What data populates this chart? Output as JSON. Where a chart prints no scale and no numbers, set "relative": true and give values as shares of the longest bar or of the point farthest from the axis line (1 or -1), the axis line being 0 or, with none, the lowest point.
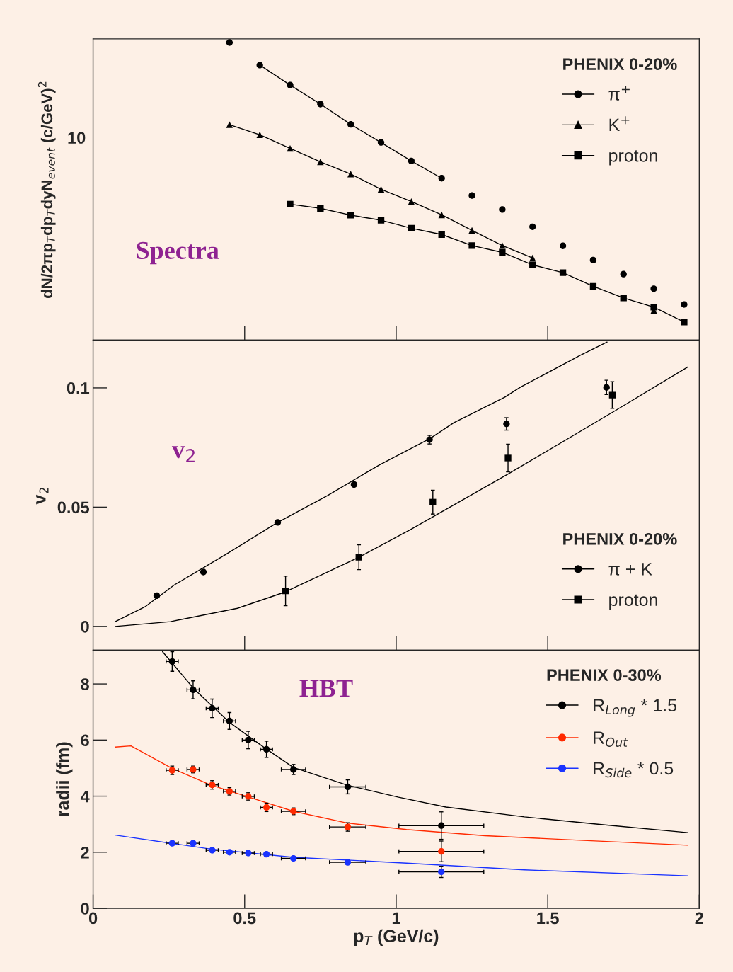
{
  "chart_data": [
    {
      "type": "scatter",
      "annotations": [
        "Spectra",
        "10"
      ],
      "ylabel": "dN/2πp$_{T}$dp$_{T}$dyN$_{event}$ (c/GeV)$^{2}$",
      "legend_title": "PHENIX 0-20%",
      "legend": "top right",
      "relative": true,
      "xlim": [
        0,
        2
      ],
      "xticks": [
        {
          "value": 0.5,
          "label": null
        },
        {
          "value": 1,
          "label": null
        },
        {
          "value": 1.5,
          "label": null
        }
      ],
      "tick_labels": false,
      "series": [
        {
          "name": "π$^{+}$",
          "color": "#000000",
          "marker": "circle",
          "x": [
            0.45,
            0.55,
            0.65,
            0.75,
            0.85,
            0.95,
            1.05,
            1.15,
            1.25,
            1.35,
            1.45,
            1.55,
            1.65,
            1.75,
            1.85,
            1.95
          ],
          "values": [
            1.0,
            0.924,
            0.857,
            0.793,
            0.725,
            0.664,
            0.602,
            0.544,
            0.486,
            0.439,
            0.381,
            0.317,
            0.269,
            0.222,
            0.173,
            0.12
          ]
        },
        {
          "name": "K$^{+}$",
          "color": "#000000",
          "marker": "triangle",
          "x": [
            0.45,
            0.55,
            0.65,
            0.75,
            0.85,
            0.95,
            1.05,
            1.15,
            1.25,
            1.35,
            1.45,
            1.85
          ],
          "values": [
            0.724,
            0.69,
            0.644,
            0.599,
            0.558,
            0.507,
            0.466,
            0.421,
            0.369,
            0.318,
            0.276,
            0.1
          ]
        },
        {
          "name": "proton",
          "color": "#000000",
          "marker": "square",
          "x": [
            0.65,
            0.75,
            0.85,
            0.95,
            1.05,
            1.15,
            1.25,
            1.35,
            1.45,
            1.55,
            1.65,
            1.75,
            1.85,
            1.95
          ],
          "values": [
            0.457,
            0.443,
            0.42,
            0.403,
            0.376,
            0.355,
            0.318,
            0.295,
            0.253,
            0.227,
            0.181,
            0.142,
            0.111,
            0.061
          ]
        },
        {
          "type": "line",
          "color": "#000000",
          "x": [
            0.55,
            0.65,
            0.75,
            0.85,
            0.95,
            1.05,
            1.15
          ],
          "values": [
            0.924,
            0.857,
            0.793,
            0.725,
            0.664,
            0.602,
            0.544
          ]
        },
        {
          "type": "line",
          "color": "#000000",
          "x": [
            0.45,
            0.55,
            0.65,
            0.75,
            0.85,
            0.95,
            1.05,
            1.15,
            1.25,
            1.35,
            1.45
          ],
          "values": [
            0.724,
            0.69,
            0.644,
            0.599,
            0.558,
            0.507,
            0.466,
            0.421,
            0.369,
            0.318,
            0.276
          ]
        },
        {
          "type": "line",
          "color": "#000000",
          "x": [
            0.65,
            0.75,
            0.85,
            0.95,
            1.05,
            1.15,
            1.25,
            1.35,
            1.45,
            1.55,
            1.65,
            1.75,
            1.85,
            1.95
          ],
          "values": [
            0.457,
            0.443,
            0.42,
            0.403,
            0.376,
            0.355,
            0.318,
            0.295,
            0.253,
            0.227,
            0.181,
            0.142,
            0.111,
            0.061
          ]
        }
      ]
    },
    {
      "type": "scatter",
      "annotations": [
        "v$_{2}$"
      ],
      "ylabel": "v$_{2}$",
      "legend_title": "PHENIX 0-20%",
      "legend": "bottom right",
      "xlim": [
        0,
        2
      ],
      "xticks": [
        {
          "value": 0.5,
          "label": null
        },
        {
          "value": 1,
          "label": null
        },
        {
          "value": 1.5,
          "label": null
        }
      ],
      "ylim": [
        -0.01,
        0.12
      ],
      "yticks": [
        0,
        0.05,
        0.1
      ],
      "tick_labels": "y",
      "series": [
        {
          "name": "π + K",
          "color": "#000000",
          "marker": "circle",
          "x": [
            0.21,
            0.364,
            0.609,
            0.861,
            1.11,
            1.364,
            1.694
          ],
          "values": [
            0.0129,
            0.0228,
            0.0436,
            0.0595,
            0.0783,
            0.0849,
            0.1002
          ],
          "errors": [
            null,
            null,
            null,
            null,
            0.0018,
            0.0026,
            0.003
          ]
        },
        {
          "name": "proton",
          "color": "#000000",
          "marker": "square",
          "x": [
            0.635,
            0.877,
            1.121,
            1.369,
            1.713
          ],
          "values": [
            0.0149,
            0.029,
            0.0521,
            0.0706,
            0.097
          ],
          "errors": [
            0.0062,
            0.0052,
            0.005,
            0.0058,
            0.0056
          ]
        },
        {
          "type": "line",
          "color": "#000000",
          "x": [
            0.073,
            0.171,
            0.268,
            0.437,
            0.605,
            0.774,
            0.943,
            1.112,
            1.19,
            1.358,
            1.41,
            1.605,
            1.696
          ],
          "values": [
            0.002,
            0.0082,
            0.0174,
            0.0301,
            0.0433,
            0.0549,
            0.0676,
            0.0788,
            0.0854,
            0.0961,
            0.1003,
            0.1135,
            0.1192
          ]
        },
        {
          "type": "line",
          "color": "#000000",
          "x": [
            0.073,
            0.255,
            0.476,
            0.635,
            0.877,
            1.047,
            1.371,
            1.722,
            1.962
          ],
          "values": [
            0.0,
            0.002,
            0.0076,
            0.0145,
            0.029,
            0.0406,
            0.064,
            0.0904,
            0.1088
          ]
        }
      ]
    },
    {
      "type": "scatter",
      "annotations": [
        "HBT"
      ],
      "xlabel": "p$_{T}$ (GeV/c)",
      "ylabel": "radii (fm)",
      "legend_title": "PHENIX 0-30%",
      "legend": "top right",
      "xlim": [
        0,
        2
      ],
      "xticks": [
        0,
        0.5,
        1,
        1.5,
        2
      ],
      "ylim": [
        0,
        9.2
      ],
      "yticks": [
        0,
        2,
        4,
        6,
        8
      ],
      "series": [
        {
          "name": "R$_{Long}$ * 1.5",
          "color": "#000000",
          "marker": "circle",
          "x": [
            0.261,
            0.33,
            0.393,
            0.45,
            0.512,
            0.572,
            0.661,
            0.84,
            1.149
          ],
          "values": [
            8.8,
            7.79,
            7.13,
            6.68,
            6.0,
            5.67,
            4.95,
            4.33,
            2.95
          ],
          "errors": [
            0.35,
            0.32,
            0.33,
            0.3,
            0.31,
            0.29,
            0.18,
            0.25,
            0.49
          ],
          "xerrors": [
            0.02,
            0.02,
            0.02,
            0.02,
            0.02,
            0.02,
            0.04,
            0.06,
            0.14
          ]
        },
        {
          "name": "R$_{Out}$",
          "color": "#ff2a00",
          "marker": "circle",
          "x": [
            0.261,
            0.33,
            0.393,
            0.45,
            0.512,
            0.572,
            0.661,
            0.84,
            1.149
          ],
          "values": [
            4.92,
            4.95,
            4.4,
            4.17,
            3.99,
            3.6,
            3.46,
            2.9,
            2.03
          ],
          "errors": [
            0.15,
            0.12,
            0.15,
            0.13,
            0.13,
            0.15,
            0.12,
            0.15,
            0.37
          ],
          "xerrors": [
            0.02,
            0.02,
            0.02,
            0.02,
            0.02,
            0.02,
            0.04,
            0.06,
            0.14
          ]
        },
        {
          "name": "R$_{Side}$ * 0.5",
          "color": "#1a33ff",
          "marker": "circle",
          "x": [
            0.261,
            0.33,
            0.393,
            0.45,
            0.512,
            0.572,
            0.661,
            0.84,
            1.149
          ],
          "values": [
            2.32,
            2.32,
            2.07,
            2.0,
            1.97,
            1.93,
            1.78,
            1.64,
            1.3
          ],
          "errors": [
            0.07,
            0.07,
            0.07,
            0.07,
            0.07,
            0.07,
            0.07,
            0.07,
            0.2
          ],
          "xerrors": [
            0.02,
            0.02,
            0.02,
            0.02,
            0.02,
            0.02,
            0.04,
            0.06,
            0.14
          ]
        },
        {
          "type": "line",
          "color": "#000000",
          "x": [
            0.229,
            0.333,
            0.45,
            0.566,
            0.661,
            0.839,
            1.008,
            1.164,
            1.423,
            1.683,
            1.962
          ],
          "values": [
            9.15,
            7.82,
            6.63,
            5.72,
            5.02,
            4.39,
            3.96,
            3.61,
            3.26,
            2.98,
            2.7
          ]
        },
        {
          "type": "line",
          "color": "#ff2a00",
          "x": [
            0.073,
            0.125,
            0.255,
            0.385,
            0.515,
            0.661,
            0.839,
            1.034,
            1.293,
            1.618,
            1.962
          ],
          "values": [
            5.75,
            5.79,
            5.02,
            4.41,
            3.96,
            3.46,
            3.04,
            2.81,
            2.59,
            2.42,
            2.25
          ]
        },
        {
          "type": "line",
          "color": "#1a33ff",
          "x": [
            0.073,
            0.385,
            0.661,
            1.034,
            1.423,
            1.962
          ],
          "values": [
            2.61,
            2.12,
            1.82,
            1.61,
            1.37,
            1.16
          ]
        }
      ]
    }
  ]
}
